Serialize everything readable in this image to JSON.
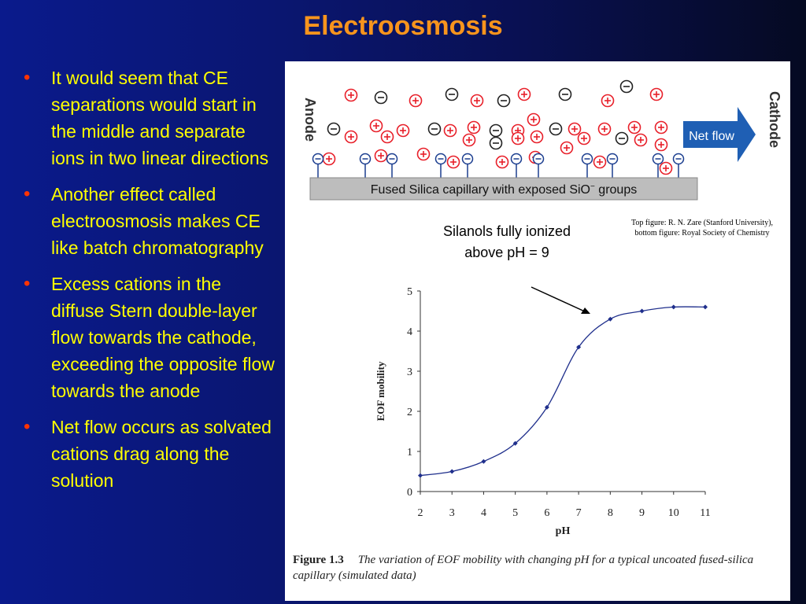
{
  "slide": {
    "title": "Electroosmosis"
  },
  "bullets": [
    "It would seem that CE separations would start in the middle and separate ions in two linear directions",
    "Another effect called electroosmosis makes CE like batch chromatography",
    "Excess cations in the diffuse Stern double-layer flow towards the cathode, exceeding the opposite flow towards the anode",
    "Net flow occurs as solvated cations drag along the solution"
  ],
  "top_figure": {
    "anode_label": "Anode",
    "cathode_label": "Cathode",
    "flow_label": "Net flow",
    "capillary_label": "Fused Silica capillary with exposed SiO",
    "capillary_superscript": "−",
    "capillary_suffix": " groups",
    "colors": {
      "cation": "#e8202a",
      "anion": "#222222",
      "silanol": "#1a3d8f",
      "arrow": "#1f5fb4",
      "capillary": "#bdbdbd"
    }
  },
  "annotation": "Silanols fully ionized above pH = 9",
  "credit": "Top figure: R. N. Zare (Stanford University), bottom figure:  Royal Society of Chemistry",
  "chart_data": {
    "type": "line",
    "xlabel": "pH",
    "ylabel": "EOF mobility",
    "x": [
      2,
      3,
      4,
      5,
      6,
      7,
      8,
      9,
      10,
      11
    ],
    "series": [
      {
        "values": [
          0.4,
          0.5,
          0.75,
          1.2,
          2.1,
          3.6,
          4.3,
          4.5,
          4.6,
          4.6
        ]
      }
    ],
    "xlim": [
      2,
      11
    ],
    "ylim": [
      0,
      5
    ],
    "xticks": [
      "2",
      "3",
      "4",
      "5",
      "6",
      "7",
      "8",
      "9",
      "10",
      "11"
    ],
    "yticks": [
      "0",
      "1",
      "2",
      "3",
      "4",
      "5"
    ],
    "grid": false,
    "line_color": "#1f2f8c"
  },
  "caption": {
    "label": "Figure 1.3",
    "text": "The variation of EOF mobility with changing pH for a typical uncoated fused-silica capillary (simulated data)"
  }
}
